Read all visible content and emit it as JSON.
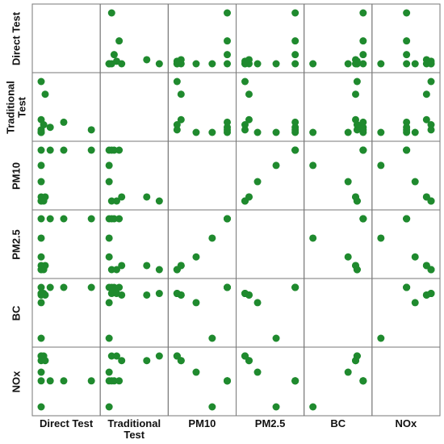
{
  "chart_data": {
    "type": "scatter_matrix",
    "color": "#1f8a2e",
    "variables": [
      {
        "name": "Direct Test",
        "values": [
          0,
          18,
          45,
          100,
          0,
          0,
          0,
          5,
          0,
          8,
          0
        ]
      },
      {
        "name": "Traditional Test",
        "values": [
          0,
          10,
          20,
          5,
          0,
          0,
          5,
          15,
          25,
          75,
          100
        ]
      },
      {
        "name": "PM10",
        "values": [
          100,
          100,
          100,
          100,
          70,
          38,
          0,
          0,
          8,
          8,
          0
        ]
      },
      {
        "name": "PM2.5",
        "values": [
          100,
          100,
          100,
          100,
          62,
          25,
          0,
          0,
          8,
          8,
          0
        ]
      },
      {
        "name": "BC",
        "values": [
          100,
          100,
          100,
          100,
          0,
          70,
          88,
          88,
          85,
          85,
          88
        ]
      },
      {
        "name": "NOx",
        "values": [
          45,
          45,
          45,
          45,
          0,
          60,
          88,
          88,
          80,
          80,
          88
        ]
      }
    ]
  }
}
